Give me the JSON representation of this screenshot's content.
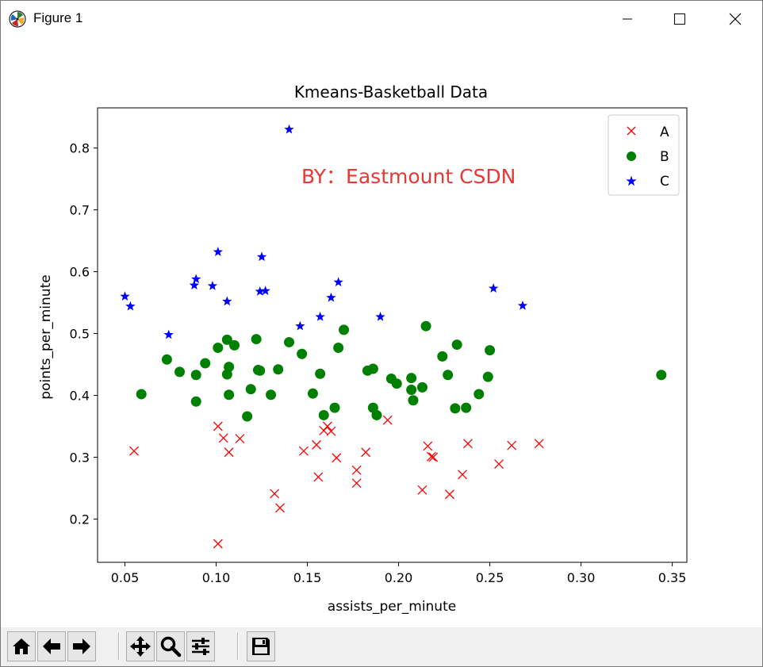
{
  "window": {
    "title": "Figure 1",
    "app_icon": "matplotlib-icon",
    "controls": [
      "minimize-icon",
      "maximize-icon",
      "close-icon"
    ]
  },
  "watermark": "BY：Eastmount CSDN",
  "colors": {
    "A": "#ff0000",
    "B": "#008000",
    "C": "#0000ff",
    "watermark": "#e53935"
  },
  "toolbar": {
    "buttons": [
      "home-icon",
      "back-icon",
      "forward-icon",
      "pan-icon",
      "zoom-icon",
      "configure-subplots-icon",
      "save-icon"
    ]
  },
  "chart_data": {
    "type": "scatter",
    "title": "Kmeans-Basketball Data",
    "xlabel": "assists_per_minute",
    "ylabel": "points_per_minute",
    "xlim": [
      0.035,
      0.358
    ],
    "ylim": [
      0.13,
      0.865
    ],
    "xticks": [
      0.05,
      0.1,
      0.15,
      0.2,
      0.25,
      0.3,
      0.35
    ],
    "xtick_labels": [
      "0.05",
      "0.10",
      "0.15",
      "0.20",
      "0.25",
      "0.30",
      "0.35"
    ],
    "yticks": [
      0.2,
      0.3,
      0.4,
      0.5,
      0.6,
      0.7,
      0.8
    ],
    "ytick_labels": [
      "0.2",
      "0.3",
      "0.4",
      "0.5",
      "0.6",
      "0.7",
      "0.8"
    ],
    "grid": false,
    "legend": "top-right",
    "series": [
      {
        "name": "A",
        "marker": "x",
        "color": "#ff0000",
        "points": [
          [
            0.055,
            0.31
          ],
          [
            0.101,
            0.35
          ],
          [
            0.104,
            0.331
          ],
          [
            0.107,
            0.308
          ],
          [
            0.113,
            0.33
          ],
          [
            0.101,
            0.16
          ],
          [
            0.132,
            0.241
          ],
          [
            0.135,
            0.218
          ],
          [
            0.148,
            0.31
          ],
          [
            0.155,
            0.32
          ],
          [
            0.156,
            0.268
          ],
          [
            0.159,
            0.343
          ],
          [
            0.161,
            0.35
          ],
          [
            0.163,
            0.342
          ],
          [
            0.166,
            0.299
          ],
          [
            0.177,
            0.279
          ],
          [
            0.177,
            0.258
          ],
          [
            0.182,
            0.308
          ],
          [
            0.194,
            0.36
          ],
          [
            0.213,
            0.247
          ],
          [
            0.216,
            0.318
          ],
          [
            0.218,
            0.301
          ],
          [
            0.219,
            0.3
          ],
          [
            0.228,
            0.24
          ],
          [
            0.235,
            0.272
          ],
          [
            0.238,
            0.322
          ],
          [
            0.255,
            0.289
          ],
          [
            0.262,
            0.319
          ],
          [
            0.277,
            0.322
          ]
        ]
      },
      {
        "name": "B",
        "marker": "o",
        "color": "#008000",
        "points": [
          [
            0.059,
            0.402
          ],
          [
            0.073,
            0.458
          ],
          [
            0.08,
            0.438
          ],
          [
            0.089,
            0.433
          ],
          [
            0.089,
            0.39
          ],
          [
            0.094,
            0.452
          ],
          [
            0.101,
            0.477
          ],
          [
            0.106,
            0.49
          ],
          [
            0.106,
            0.434
          ],
          [
            0.107,
            0.446
          ],
          [
            0.107,
            0.401
          ],
          [
            0.11,
            0.481
          ],
          [
            0.117,
            0.366
          ],
          [
            0.119,
            0.41
          ],
          [
            0.122,
            0.491
          ],
          [
            0.123,
            0.441
          ],
          [
            0.124,
            0.44
          ],
          [
            0.13,
            0.401
          ],
          [
            0.134,
            0.442
          ],
          [
            0.14,
            0.486
          ],
          [
            0.147,
            0.467
          ],
          [
            0.153,
            0.403
          ],
          [
            0.157,
            0.435
          ],
          [
            0.159,
            0.368
          ],
          [
            0.165,
            0.38
          ],
          [
            0.167,
            0.477
          ],
          [
            0.17,
            0.506
          ],
          [
            0.183,
            0.44
          ],
          [
            0.186,
            0.443
          ],
          [
            0.186,
            0.38
          ],
          [
            0.188,
            0.368
          ],
          [
            0.196,
            0.427
          ],
          [
            0.199,
            0.419
          ],
          [
            0.207,
            0.428
          ],
          [
            0.207,
            0.409
          ],
          [
            0.208,
            0.392
          ],
          [
            0.213,
            0.413
          ],
          [
            0.215,
            0.512
          ],
          [
            0.224,
            0.463
          ],
          [
            0.227,
            0.433
          ],
          [
            0.231,
            0.379
          ],
          [
            0.232,
            0.482
          ],
          [
            0.237,
            0.38
          ],
          [
            0.244,
            0.402
          ],
          [
            0.249,
            0.43
          ],
          [
            0.25,
            0.473
          ],
          [
            0.344,
            0.433
          ]
        ]
      },
      {
        "name": "C",
        "marker": "*",
        "color": "#0000ff",
        "points": [
          [
            0.05,
            0.56
          ],
          [
            0.053,
            0.544
          ],
          [
            0.074,
            0.498
          ],
          [
            0.088,
            0.578
          ],
          [
            0.089,
            0.588
          ],
          [
            0.098,
            0.577
          ],
          [
            0.101,
            0.632
          ],
          [
            0.106,
            0.552
          ],
          [
            0.124,
            0.568
          ],
          [
            0.125,
            0.624
          ],
          [
            0.127,
            0.569
          ],
          [
            0.14,
            0.83
          ],
          [
            0.146,
            0.512
          ],
          [
            0.157,
            0.527
          ],
          [
            0.163,
            0.558
          ],
          [
            0.167,
            0.583
          ],
          [
            0.19,
            0.527
          ],
          [
            0.252,
            0.573
          ],
          [
            0.268,
            0.545
          ]
        ]
      }
    ]
  }
}
